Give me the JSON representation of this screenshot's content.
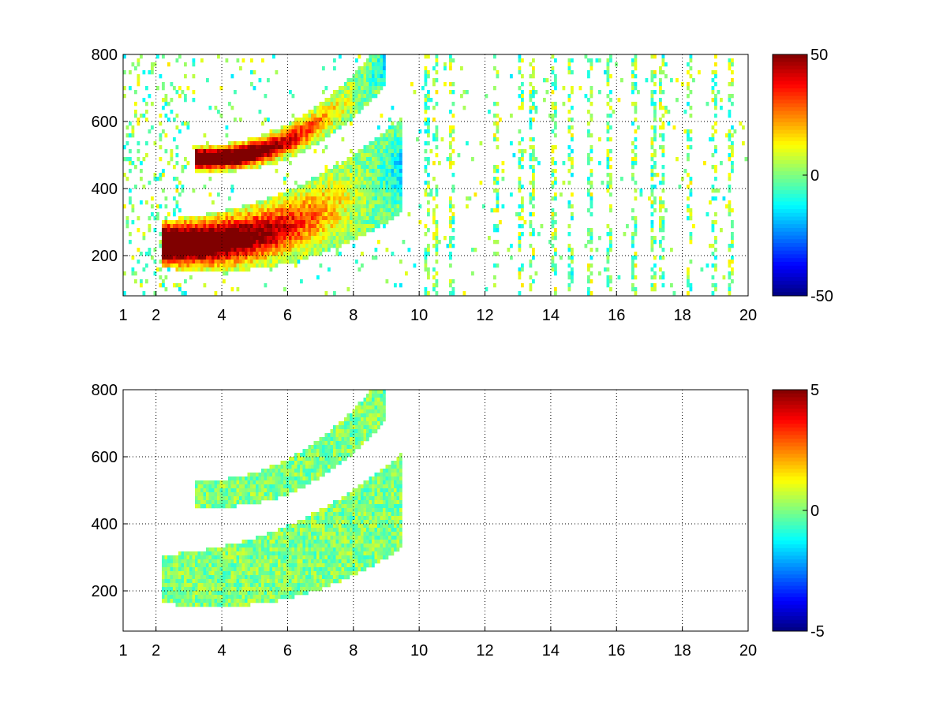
{
  "chart_data": [
    {
      "type": "heatmap",
      "title": "",
      "xlabel": "",
      "ylabel": "",
      "xlim": [
        1,
        20
      ],
      "ylim": [
        80,
        800
      ],
      "x_ticks": [
        "1",
        "2",
        "4",
        "6",
        "8",
        "10",
        "12",
        "14",
        "16",
        "18",
        "20"
      ],
      "x_tick_values": [
        1,
        2,
        4,
        6,
        8,
        10,
        12,
        14,
        16,
        18,
        20
      ],
      "y_ticks": [
        "200",
        "400",
        "600",
        "800"
      ],
      "y_tick_values": [
        200,
        400,
        600,
        800
      ],
      "grid": true,
      "colormap": "jet",
      "colorbar": {
        "min": -50,
        "max": 50,
        "tick_labels": [
          "50",
          "0",
          "-50"
        ],
        "tick_values": [
          50,
          0,
          -50
        ]
      },
      "bands": [
        {
          "x_start": 3.5,
          "x_end": 9.0,
          "y_at_start": 490,
          "y_at_end": 780,
          "width": 25,
          "polarity": "dipole"
        },
        {
          "x_start": 2.5,
          "x_end": 9.5,
          "y_at_start": 235,
          "y_at_end": 470,
          "width": 50,
          "polarity": "dipole"
        }
      ],
      "noise_columns": [
        10.2,
        10.5,
        11.0,
        12.3,
        13.1,
        13.4,
        14.1,
        14.6,
        15.2,
        15.8,
        16.5,
        17.1,
        17.4,
        18.2,
        19.0,
        19.5
      ],
      "seed": 12345
    },
    {
      "type": "heatmap",
      "title": "",
      "xlabel": "",
      "ylabel": "",
      "xlim": [
        1,
        20
      ],
      "ylim": [
        80,
        800
      ],
      "x_ticks": [
        "1",
        "2",
        "4",
        "6",
        "8",
        "10",
        "12",
        "14",
        "16",
        "18",
        "20"
      ],
      "x_tick_values": [
        1,
        2,
        4,
        6,
        8,
        10,
        12,
        14,
        16,
        18,
        20
      ],
      "y_ticks": [
        "200",
        "400",
        "600",
        "800"
      ],
      "y_tick_values": [
        200,
        400,
        600,
        800
      ],
      "grid": true,
      "colormap": "jet",
      "colorbar": {
        "min": -5,
        "max": 5,
        "tick_labels": [
          "5",
          "0",
          "-5"
        ],
        "tick_values": [
          5,
          0,
          -5
        ]
      },
      "bands": [
        {
          "x_start": 3.5,
          "x_end": 9.0,
          "y_at_start": 490,
          "y_at_end": 780,
          "width": 25,
          "polarity": "flat"
        },
        {
          "x_start": 2.5,
          "x_end": 9.5,
          "y_at_start": 235,
          "y_at_end": 470,
          "width": 50,
          "polarity": "flat"
        }
      ],
      "noise_columns": [],
      "seed": 6789
    }
  ]
}
